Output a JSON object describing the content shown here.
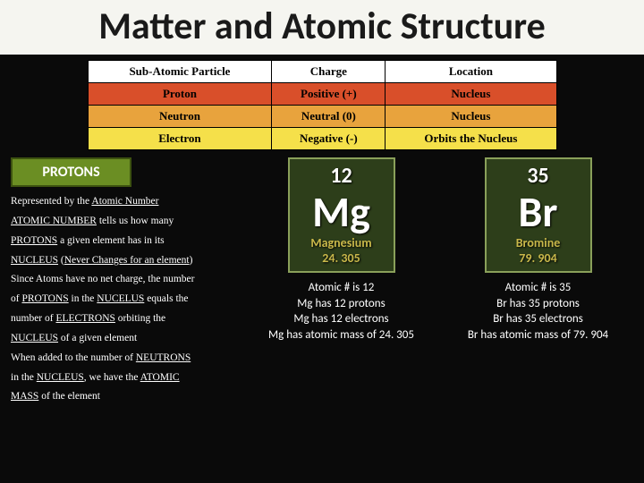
{
  "title": "Matter and Atomic Structure",
  "table": {
    "headers": [
      "Sub-Atomic Particle",
      "Charge",
      "Location"
    ],
    "rows": [
      {
        "cls": "row-proton",
        "cells": [
          "Proton",
          "Positive (+)",
          "Nucleus"
        ]
      },
      {
        "cls": "row-neutron",
        "cells": [
          "Neutron",
          "Neutral (0)",
          "Nucleus"
        ]
      },
      {
        "cls": "row-electron",
        "cells": [
          "Electron",
          "Negative (-)",
          "Orbits the Nucleus"
        ]
      }
    ],
    "row_colors": {
      "proton": "#d94f2a",
      "neutron": "#e8a33d",
      "electron": "#f5e04a"
    }
  },
  "protons_badge": "PROTONS",
  "desc_lines": [
    "Represented by the <span class='u'>Atomic Number</span>",
    "<span class='u'>ATOMIC NUMBER</span> tells us how many",
    "<span class='u'>PROTONS</span> a given element has in its",
    "<span class='u'>NUCLEUS</span> (<span class='u'>Never Changes for an element</span>)",
    "Since Atoms have no net charge, the number",
    "of <span class='u'>PROTONS</span> in the <span class='u'>NUCELUS</span> equals the",
    "number of <span class='u'>ELECTRONS</span> orbiting the",
    "<span class='u'>NUCLEUS</span> of a given element",
    "When added to the number of <span class='u'>NEUTRONS</span>",
    "in the <span class='u'>NUCLEUS</span>, we have the <span class='u'>ATOMIC</span>",
    "<span class='u'>MASS</span> of the element"
  ],
  "elements": [
    {
      "number": "12",
      "symbol": "Mg",
      "name": "Magnesium",
      "mass": "24. 305",
      "facts": [
        "Atomic # is 12",
        "Mg has 12 protons",
        "Mg has 12 electrons",
        "Mg has atomic mass of 24. 305"
      ]
    },
    {
      "number": "35",
      "symbol": "Br",
      "name": "Bromine",
      "mass": "79. 904",
      "facts": [
        "Atomic # is 35",
        "Br has 35 protons",
        "Br has 35 electrons",
        "Br has atomic mass of 79. 904"
      ]
    }
  ],
  "colors": {
    "background": "#0a0a0a",
    "title_bg": "#f5f5f0",
    "badge_bg": "#6b8e23",
    "tile_bg": "#2d3e1a",
    "tile_border": "#8aa05a",
    "tile_accent": "#c9b84a"
  }
}
